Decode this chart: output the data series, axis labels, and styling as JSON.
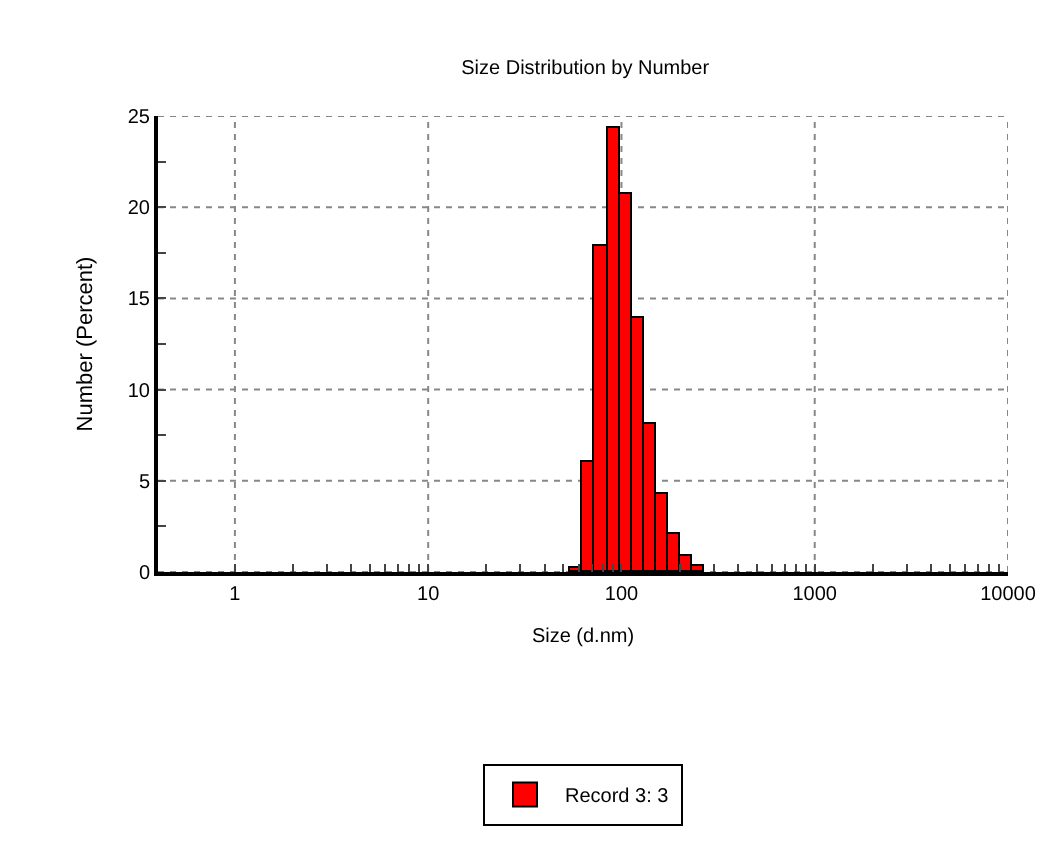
{
  "chart_data": {
    "type": "histogram",
    "title": "Size Distribution by Number",
    "xlabel": "Size (d.nm)",
    "ylabel": "Number (Percent)",
    "log": "x",
    "bins": [
      54.6,
      63.1,
      72.9,
      84.2,
      97.4,
      112.5,
      130.0,
      150.3,
      173.6,
      200.6,
      231.9,
      267.9,
      309.6
    ],
    "series": [
      {
        "name": "Record 3: 3",
        "color": "#ff0000",
        "values": [
          0.2,
          6.0,
          17.9,
          24.3,
          20.7,
          13.9,
          8.1,
          4.3,
          2.1,
          0.9,
          0.3,
          null
        ]
      }
    ],
    "xlim": [
      0.4,
      10000
    ],
    "xticks": [
      1,
      {
        "value": 2,
        "label": null
      },
      {
        "value": 3,
        "label": null
      },
      {
        "value": 4,
        "label": null
      },
      {
        "value": 5,
        "label": null
      },
      {
        "value": 6,
        "label": null
      },
      {
        "value": 7,
        "label": null
      },
      {
        "value": 8,
        "label": null
      },
      {
        "value": 9,
        "label": null
      },
      10,
      {
        "value": 20,
        "label": null
      },
      {
        "value": 30,
        "label": null
      },
      {
        "value": 40,
        "label": null
      },
      {
        "value": 50,
        "label": null
      },
      {
        "value": 60,
        "label": null
      },
      {
        "value": 70,
        "label": null
      },
      {
        "value": 80,
        "label": null
      },
      {
        "value": 90,
        "label": null
      },
      100,
      {
        "value": 200,
        "label": null
      },
      {
        "value": 300,
        "label": null
      },
      {
        "value": 400,
        "label": null
      },
      {
        "value": 500,
        "label": null
      },
      {
        "value": 600,
        "label": null
      },
      {
        "value": 700,
        "label": null
      },
      {
        "value": 800,
        "label": null
      },
      {
        "value": 900,
        "label": null
      },
      1000,
      {
        "value": 2000,
        "label": null
      },
      {
        "value": 3000,
        "label": null
      },
      {
        "value": 4000,
        "label": null
      },
      {
        "value": 5000,
        "label": null
      },
      {
        "value": 6000,
        "label": null
      },
      {
        "value": 7000,
        "label": null
      },
      {
        "value": 8000,
        "label": null
      },
      {
        "value": 9000,
        "label": null
      },
      10000
    ],
    "ylim": [
      0,
      25
    ],
    "yticks": [
      0,
      {
        "value": 2.5,
        "label": null
      },
      5,
      {
        "value": 7.5,
        "label": null
      },
      10,
      {
        "value": 12.5,
        "label": null
      },
      15,
      {
        "value": 17.5,
        "label": null
      },
      20,
      {
        "value": 22.5,
        "label": null
      },
      25
    ],
    "grid": true,
    "legend": "bottom"
  }
}
